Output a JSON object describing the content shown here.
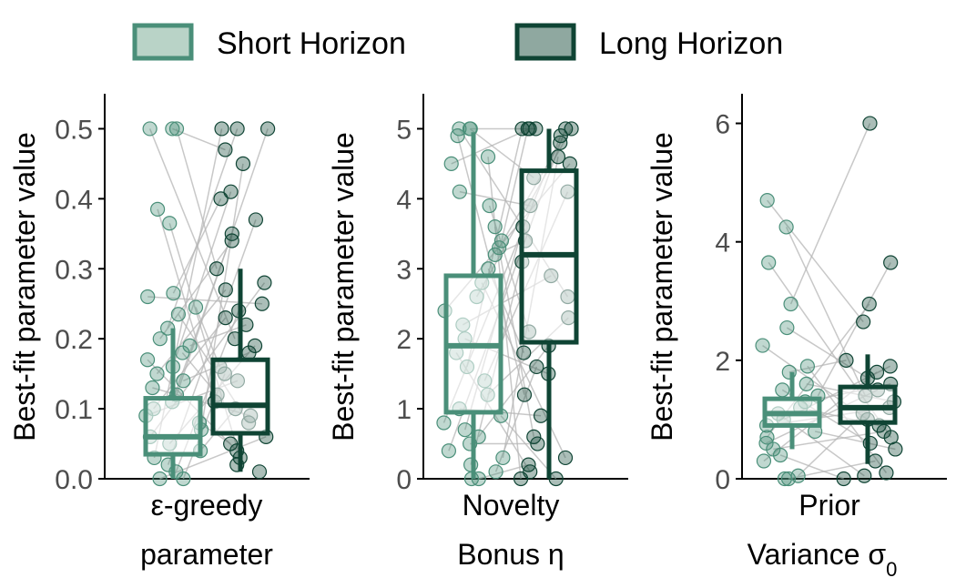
{
  "legend": {
    "items": [
      {
        "label": "Short Horizon",
        "fill": "#b9d3c7",
        "stroke": "#4a8f79"
      },
      {
        "label": "Long Horizon",
        "fill": "#8fa8a0",
        "stroke": "#0f4434"
      }
    ]
  },
  "colors": {
    "short_point": "#4a8f79",
    "long_point": "#0f4434",
    "short_box": "#4a8f79",
    "long_box": "#0f4434",
    "pair_line": "#b5b5b5",
    "axis": "#000000"
  },
  "chart_data": [
    {
      "type": "box",
      "ylabel": "Best-fit parameter value",
      "category_line1": "ε-greedy",
      "category_line2": "parameter",
      "ylim": [
        0,
        0.55
      ],
      "yticks": [
        "0.0",
        "0.1",
        "0.2",
        "0.3",
        "0.4",
        "0.5"
      ],
      "ytick_values": [
        0,
        0.1,
        0.2,
        0.3,
        0.4,
        0.5
      ],
      "series": [
        {
          "name": "Short Horizon",
          "whisker_low": 0.0,
          "q1": 0.035,
          "median": 0.06,
          "q3": 0.115,
          "whisker_high": 0.215,
          "points": [
            0.5,
            0.5,
            0.5,
            0.385,
            0.365,
            0.265,
            0.26,
            0.245,
            0.235,
            0.215,
            0.2,
            0.19,
            0.18,
            0.17,
            0.16,
            0.15,
            0.14,
            0.13,
            0.12,
            0.11,
            0.1,
            0.09,
            0.08,
            0.07,
            0.06,
            0.05,
            0.04,
            0.03,
            0.02,
            0.01,
            0.0,
            0.0
          ]
        },
        {
          "name": "Long Horizon",
          "whisker_low": 0.01,
          "q1": 0.065,
          "median": 0.105,
          "q3": 0.17,
          "whisker_high": 0.3,
          "points": [
            0.5,
            0.5,
            0.5,
            0.47,
            0.45,
            0.41,
            0.4,
            0.37,
            0.35,
            0.34,
            0.3,
            0.28,
            0.27,
            0.25,
            0.24,
            0.23,
            0.22,
            0.2,
            0.19,
            0.18,
            0.16,
            0.15,
            0.14,
            0.12,
            0.11,
            0.1,
            0.09,
            0.08,
            0.06,
            0.05,
            0.04,
            0.03,
            0.02,
            0.01
          ]
        }
      ]
    },
    {
      "type": "box",
      "ylabel": "Best-fit parameter value",
      "category_line1": "Novelty",
      "category_line2": "Bonus η",
      "ylim": [
        0,
        5.5
      ],
      "yticks": [
        "0",
        "1",
        "2",
        "3",
        "4",
        "5"
      ],
      "ytick_values": [
        0,
        1,
        2,
        3,
        4,
        5
      ],
      "series": [
        {
          "name": "Short Horizon",
          "whisker_low": 0.0,
          "q1": 0.95,
          "median": 1.9,
          "q3": 2.9,
          "whisker_high": 4.95,
          "points": [
            5.0,
            5.0,
            5.0,
            4.9,
            4.6,
            4.5,
            4.1,
            3.9,
            3.6,
            3.4,
            3.3,
            3.2,
            3.0,
            2.8,
            2.6,
            2.4,
            2.2,
            2.0,
            1.8,
            1.6,
            1.4,
            1.2,
            1.0,
            0.9,
            0.8,
            0.7,
            0.6,
            0.5,
            0.4,
            0.3,
            0.2,
            0.1,
            0.0,
            0.0
          ]
        },
        {
          "name": "Long Horizon",
          "whisker_low": 0.0,
          "q1": 1.95,
          "median": 3.2,
          "q3": 4.4,
          "whisker_high": 5.0,
          "points": [
            5.0,
            5.0,
            5.0,
            5.0,
            5.0,
            5.0,
            4.9,
            4.8,
            4.6,
            4.5,
            4.3,
            4.1,
            3.9,
            3.6,
            3.4,
            3.1,
            2.9,
            2.6,
            2.3,
            2.1,
            1.9,
            1.8,
            1.6,
            1.5,
            1.2,
            0.9,
            0.6,
            0.5,
            0.3,
            0.2,
            0.1,
            0.0,
            0.0
          ]
        }
      ]
    },
    {
      "type": "box",
      "ylabel": "Best-fit parameter value",
      "category_line1": "Prior",
      "category_line2": "Variance σ",
      "category_line2_sub": "0",
      "ylim": [
        0,
        6.5
      ],
      "yticks": [
        "0",
        "2",
        "4",
        "6"
      ],
      "ytick_values": [
        0,
        2,
        4,
        6
      ],
      "series": [
        {
          "name": "Short Horizon",
          "whisker_low": 0.5,
          "q1": 0.9,
          "median": 1.1,
          "q3": 1.35,
          "whisker_high": 1.8,
          "points": [
            4.7,
            4.25,
            3.65,
            2.95,
            2.55,
            2.25,
            1.9,
            1.8,
            1.6,
            1.5,
            1.4,
            1.3,
            1.2,
            1.1,
            1.0,
            0.9,
            0.8,
            0.7,
            0.6,
            0.5,
            0.4,
            0.3,
            0.05,
            0.0,
            0.0
          ]
        },
        {
          "name": "Long Horizon",
          "whisker_low": 0.25,
          "q1": 0.95,
          "median": 1.2,
          "q3": 1.55,
          "whisker_high": 2.1,
          "points": [
            6.0,
            3.65,
            2.95,
            2.65,
            2.0,
            1.9,
            1.8,
            1.7,
            1.6,
            1.5,
            1.4,
            1.3,
            1.2,
            1.1,
            1.0,
            0.9,
            0.8,
            0.7,
            0.6,
            0.5,
            0.3,
            0.1,
            0.05,
            0.0
          ]
        }
      ]
    }
  ]
}
